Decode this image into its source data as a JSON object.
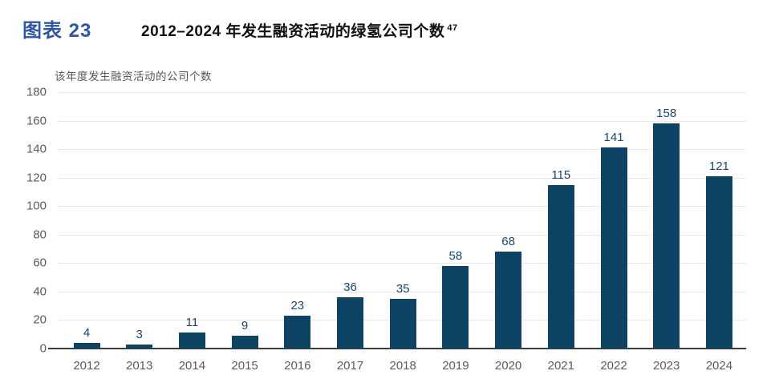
{
  "header": {
    "figure_label": "图表 23",
    "title": "2012–2024 年发生融资活动的绿氢公司个数",
    "footnote_ref": "47",
    "subtitle": "该年度发生融资活动的公司个数"
  },
  "colors": {
    "accent_blue": "#2f55a4",
    "bar": "#0f4366",
    "value_label": "#17476b",
    "tick_text": "#5b5b5b",
    "gridline": "#e9e9e9",
    "axis_line": "#3d3d3d"
  },
  "chart_data": {
    "type": "bar",
    "title": "2012–2024 年发生融资活动的绿氢公司个数",
    "subtitle_unit": "该年度发生融资活动的公司个数",
    "categories": [
      "2012",
      "2013",
      "2014",
      "2015",
      "2016",
      "2017",
      "2018",
      "2019",
      "2020",
      "2021",
      "2022",
      "2023",
      "2024"
    ],
    "values": [
      4,
      3,
      11,
      9,
      23,
      36,
      35,
      58,
      68,
      115,
      141,
      158,
      121
    ],
    "xlabel": "",
    "ylabel": "该年度发生融资活动的公司个数",
    "ylim": [
      0,
      180
    ],
    "ytick_step": 20,
    "grid": true,
    "legend": false,
    "data_labels": true
  }
}
